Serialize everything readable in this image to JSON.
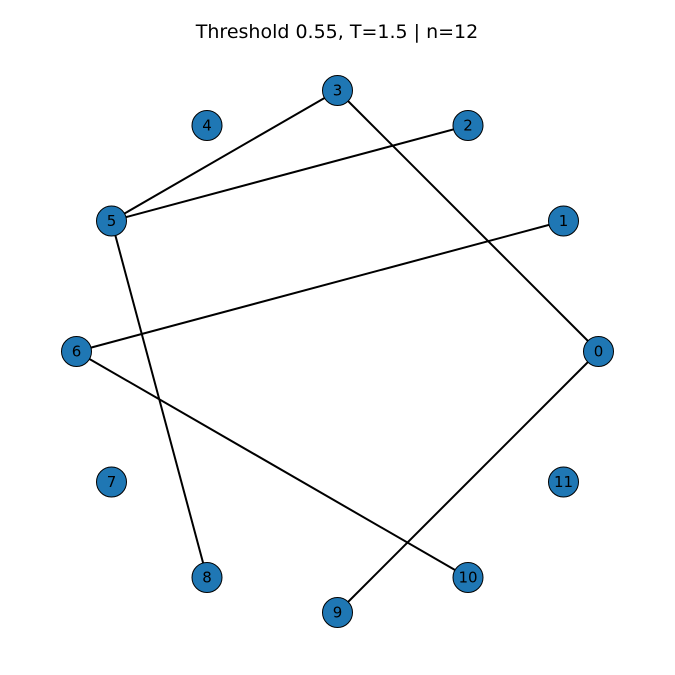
{
  "title": "Threshold 0.55, T=1.5 | n=12",
  "colors": {
    "node_fill": "#1f77b4",
    "node_stroke": "#000000",
    "edge": "#000000",
    "background": "#ffffff"
  },
  "graph": {
    "n": 12,
    "layout": "circular",
    "nodes": [
      {
        "id": 0,
        "label": "0"
      },
      {
        "id": 1,
        "label": "1"
      },
      {
        "id": 2,
        "label": "2"
      },
      {
        "id": 3,
        "label": "3"
      },
      {
        "id": 4,
        "label": "4"
      },
      {
        "id": 5,
        "label": "5"
      },
      {
        "id": 6,
        "label": "6"
      },
      {
        "id": 7,
        "label": "7"
      },
      {
        "id": 8,
        "label": "8"
      },
      {
        "id": 9,
        "label": "9"
      },
      {
        "id": 10,
        "label": "10"
      },
      {
        "id": 11,
        "label": "11"
      }
    ],
    "edges": [
      [
        3,
        5
      ],
      [
        2,
        5
      ],
      [
        3,
        0
      ],
      [
        1,
        6
      ],
      [
        5,
        8
      ],
      [
        6,
        10
      ],
      [
        0,
        9
      ]
    ]
  }
}
